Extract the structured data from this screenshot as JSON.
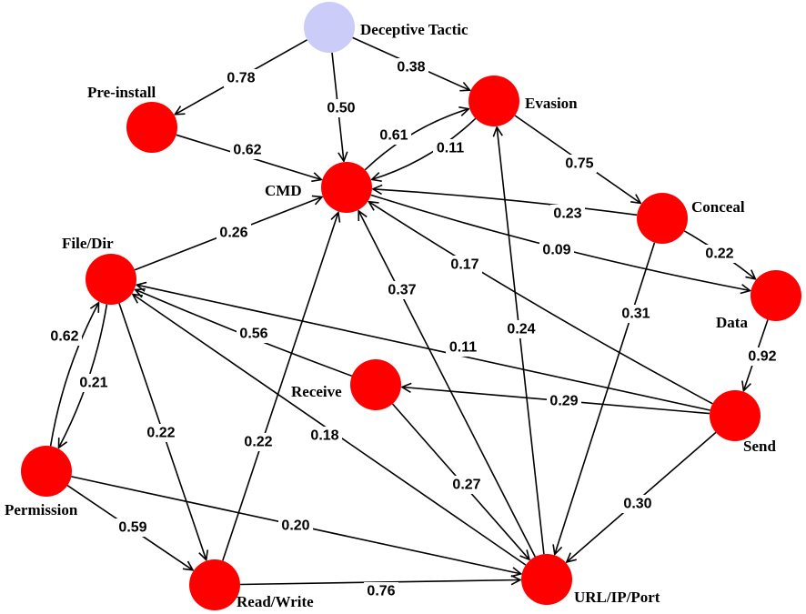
{
  "colors": {
    "tactic": "#ccccf8",
    "node": "#ff0000",
    "edge": "#000000",
    "background": "#ffffff"
  },
  "nodes": [
    {
      "id": "tactic",
      "label": "Deceptive Tactic"
    },
    {
      "id": "preinstall",
      "label": "Pre-install"
    },
    {
      "id": "evasion",
      "label": "Evasion"
    },
    {
      "id": "cmd",
      "label": "CMD"
    },
    {
      "id": "conceal",
      "label": "Conceal"
    },
    {
      "id": "filedir",
      "label": "File/Dir"
    },
    {
      "id": "data",
      "label": "Data"
    },
    {
      "id": "receive",
      "label": "Receive"
    },
    {
      "id": "send",
      "label": "Send"
    },
    {
      "id": "permission",
      "label": "Permission"
    },
    {
      "id": "readwrite",
      "label": "Read/Write"
    },
    {
      "id": "url",
      "label": "URL/IP/Port"
    }
  ],
  "edges": [
    {
      "from": "tactic",
      "to": "preinstall",
      "weight": "0.78"
    },
    {
      "from": "tactic",
      "to": "cmd",
      "weight": "0.50"
    },
    {
      "from": "tactic",
      "to": "evasion",
      "weight": "0.38"
    },
    {
      "from": "preinstall",
      "to": "cmd",
      "weight": "0.62"
    },
    {
      "from": "cmd",
      "to": "evasion",
      "weight": "0.61"
    },
    {
      "from": "evasion",
      "to": "cmd",
      "weight": "0.11"
    },
    {
      "from": "evasion",
      "to": "conceal",
      "weight": "0.75"
    },
    {
      "from": "conceal",
      "to": "cmd",
      "weight": "0.23"
    },
    {
      "from": "conceal",
      "to": "data",
      "weight": "0.22"
    },
    {
      "from": "cmd",
      "to": "data",
      "weight": "0.09"
    },
    {
      "from": "filedir",
      "to": "cmd",
      "weight": "0.26"
    },
    {
      "from": "send",
      "to": "cmd",
      "weight": "0.17"
    },
    {
      "from": "url",
      "to": "cmd",
      "weight": "0.37"
    },
    {
      "from": "url",
      "to": "evasion",
      "weight": "0.24"
    },
    {
      "from": "conceal",
      "to": "url",
      "weight": "0.31"
    },
    {
      "from": "data",
      "to": "send",
      "weight": "0.92"
    },
    {
      "from": "send",
      "to": "receive",
      "weight": "0.29"
    },
    {
      "from": "send",
      "to": "filedir",
      "weight": "0.11"
    },
    {
      "from": "receive",
      "to": "filedir",
      "weight": "0.56"
    },
    {
      "from": "send",
      "to": "url",
      "weight": "0.30"
    },
    {
      "from": "receive",
      "to": "url",
      "weight": "0.27"
    },
    {
      "from": "url",
      "to": "filedir",
      "weight": "0.18"
    },
    {
      "from": "readwrite",
      "to": "cmd",
      "weight": "0.22"
    },
    {
      "from": "filedir",
      "to": "readwrite",
      "weight": "0.22"
    },
    {
      "from": "filedir",
      "to": "permission",
      "weight": "0.62"
    },
    {
      "from": "permission",
      "to": "filedir",
      "weight": "0.21"
    },
    {
      "from": "permission",
      "to": "readwrite",
      "weight": "0.59"
    },
    {
      "from": "permission",
      "to": "url",
      "weight": "0.20"
    },
    {
      "from": "readwrite",
      "to": "url",
      "weight": "0.76"
    }
  ]
}
